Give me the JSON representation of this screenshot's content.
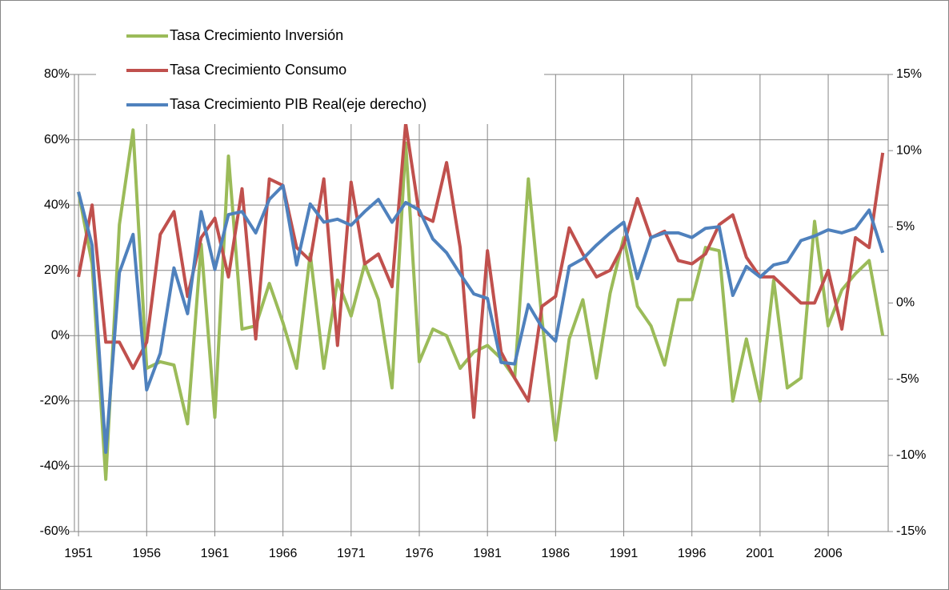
{
  "chart_data": {
    "type": "line",
    "x": [
      1951,
      1952,
      1953,
      1954,
      1955,
      1956,
      1957,
      1958,
      1959,
      1960,
      1961,
      1962,
      1963,
      1964,
      1965,
      1966,
      1967,
      1968,
      1969,
      1970,
      1971,
      1972,
      1973,
      1974,
      1975,
      1976,
      1977,
      1978,
      1979,
      1980,
      1981,
      1982,
      1983,
      1984,
      1985,
      1986,
      1987,
      1988,
      1989,
      1990,
      1991,
      1992,
      1993,
      1994,
      1995,
      1996,
      1997,
      1998,
      1999,
      2000,
      2001,
      2002,
      2003,
      2004,
      2005,
      2006,
      2007,
      2008,
      2009,
      2010
    ],
    "xlim": [
      1950.7,
      2010.4
    ],
    "xticks": [
      1951,
      1956,
      1961,
      1966,
      1971,
      1976,
      1981,
      1986,
      1991,
      1996,
      2001,
      2006
    ],
    "ylim": [
      -60,
      80
    ],
    "yticks": [
      {
        "value": -60,
        "label": "-60%"
      },
      {
        "value": -40,
        "label": "-40%"
      },
      {
        "value": -20,
        "label": "-20%"
      },
      {
        "value": 0,
        "label": "0%"
      },
      {
        "value": 20,
        "label": "20%"
      },
      {
        "value": 40,
        "label": "40%"
      },
      {
        "value": 60,
        "label": "60%"
      },
      {
        "value": 80,
        "label": "80%"
      }
    ],
    "y2lim": [
      -15,
      15
    ],
    "y2ticks": [
      {
        "value": -15,
        "label": "-15%"
      },
      {
        "value": -10,
        "label": "-10%"
      },
      {
        "value": -5,
        "label": "-5%"
      },
      {
        "value": 0,
        "label": "0%"
      },
      {
        "value": 5,
        "label": "5%"
      },
      {
        "value": 10,
        "label": "10%"
      },
      {
        "value": 15,
        "label": "15%"
      }
    ],
    "grid": true,
    "legend": "upper left",
    "series": [
      {
        "name": "Tasa Crecimiento Inversión",
        "color": "#9bbb59",
        "values": [
          44,
          22,
          -44,
          34,
          63,
          -10,
          -8,
          -9,
          -27,
          28,
          -25,
          55,
          2,
          3,
          16,
          4,
          -10,
          25,
          -10,
          17,
          6,
          22,
          11,
          -16,
          59,
          -8,
          2,
          0,
          -10,
          -5,
          -3,
          -7,
          -13,
          48,
          5,
          -32,
          -1,
          11,
          -13,
          13,
          30,
          9,
          3,
          -9,
          11,
          11,
          27,
          26,
          -20,
          -1,
          -20,
          17,
          -16,
          -13,
          35,
          3,
          14,
          19,
          23,
          0
        ]
      },
      {
        "name": "Tasa Crecimiento  Consumo",
        "color": "#c0504d",
        "values": [
          18,
          40,
          -2,
          -2,
          -10,
          -2,
          31,
          38,
          12,
          30,
          36,
          18,
          45,
          -1,
          48,
          46,
          27,
          23,
          48,
          -3,
          47,
          22,
          25,
          15,
          65,
          37,
          35,
          53,
          27,
          -25,
          26,
          -5,
          -13,
          -20,
          9,
          12,
          33,
          25,
          18,
          20,
          28,
          42,
          30,
          32,
          23,
          22,
          25,
          34,
          37,
          24,
          18,
          18,
          14,
          10,
          10,
          20,
          2,
          30,
          27,
          56
        ]
      },
      {
        "name": "Tasa Crecimiento PIB Real(eje derecho)",
        "color": "#4f81bd",
        "axis": "y2",
        "values": [
          7.3,
          3.8,
          -9.8,
          2,
          4.5,
          -5.7,
          -3.3,
          2.3,
          -0.7,
          6,
          2.2,
          5.8,
          6,
          4.6,
          6.8,
          7.7,
          2.5,
          6.5,
          5.3,
          5.5,
          5.1,
          6,
          6.8,
          5.3,
          6.6,
          6.1,
          4.2,
          3.3,
          1.9,
          0.6,
          0.3,
          -3.9,
          -4,
          -0.1,
          -1.6,
          -2.5,
          2.4,
          2.9,
          3.8,
          4.6,
          5.3,
          1.6,
          4.3,
          4.6,
          4.6,
          4.3,
          4.9,
          5,
          0.5,
          2.4,
          1.7,
          2.5,
          2.7,
          4.1,
          4.4,
          4.8,
          4.6,
          4.9,
          6.1,
          3.3
        ]
      }
    ]
  }
}
